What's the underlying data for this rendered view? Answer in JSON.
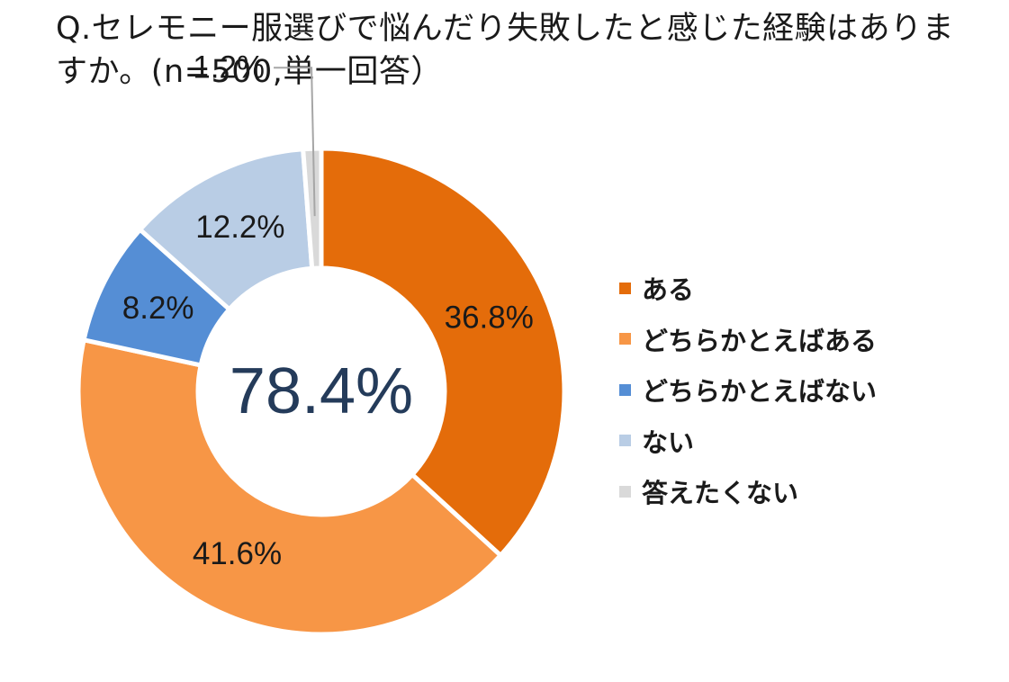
{
  "title": "Q.セレモニー服選びで悩んだり失敗したと感じた経験はありますか。(n=500,単一回答）",
  "center_label": "78.4%",
  "chart_data": {
    "type": "pie",
    "variant": "donut",
    "title": "Q.セレモニー服選びで悩んだり失敗したと感じた経験はありますか。(n=500,単一回答）",
    "unit": "%",
    "legend_position": "right",
    "slices": [
      {
        "name": "ある",
        "value": 36.8,
        "label": "36.8%",
        "color": "#E46C0A"
      },
      {
        "name": "どちらかとえばある",
        "value": 41.6,
        "label": "41.6%",
        "color": "#F79646"
      },
      {
        "name": "どちらかとえばない",
        "value": 8.2,
        "label": "8.2%",
        "color": "#558ED5"
      },
      {
        "name": "ない",
        "value": 12.2,
        "label": "12.2%",
        "color": "#B9CDE5"
      },
      {
        "name": "答えたくない",
        "value": 1.2,
        "label": "1.2%",
        "color": "#D9D9D9"
      }
    ]
  }
}
